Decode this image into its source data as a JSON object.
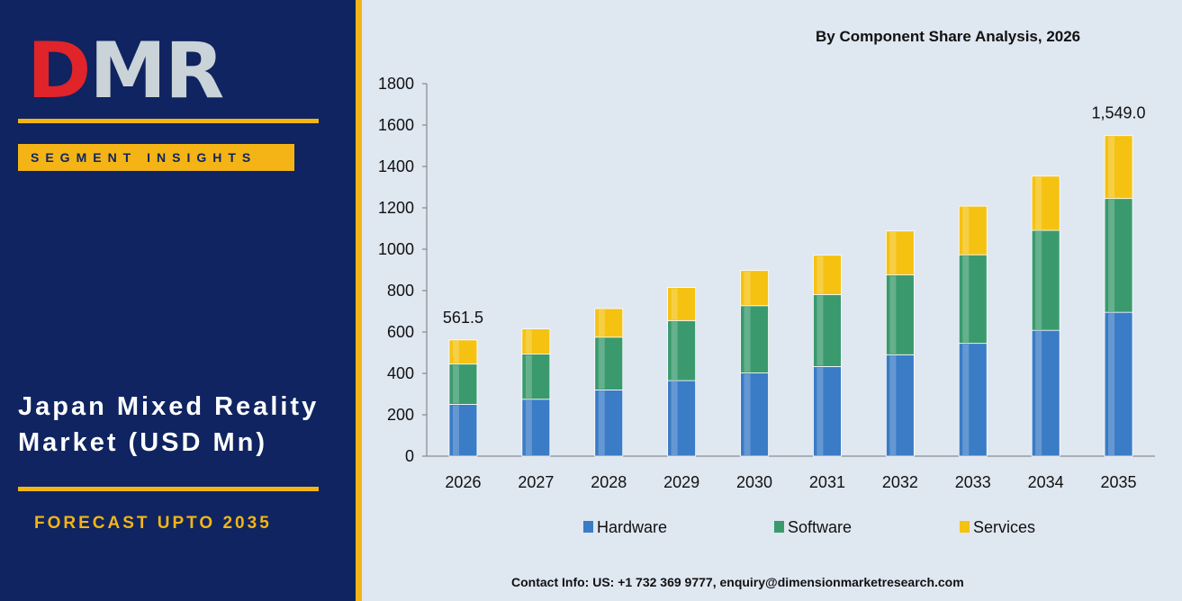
{
  "brand": {
    "logo_letters": [
      "D",
      "M",
      "R"
    ],
    "logo_colors": [
      "#e0242a",
      "#c9d3d8",
      "#c9d3d8"
    ],
    "tag": "SEGMENT INSIGHTS",
    "title": "Japan Mixed Reality Market (USD Mn)",
    "forecast": "FORECAST UPTO 2035"
  },
  "colors": {
    "panel": "#0f2460",
    "accent": "#f4b416",
    "chart_bg": "#dfe7f1"
  },
  "contact": "Contact Info: US: +1 732 369 9777, enquiry@dimensionmarketresearch.com",
  "chart_data": {
    "type": "bar",
    "stacked": true,
    "title": "By Component Share Analysis, 2026",
    "xlabel": "",
    "ylabel": "",
    "categories": [
      "2026",
      "2027",
      "2028",
      "2029",
      "2030",
      "2031",
      "2032",
      "2033",
      "2034",
      "2035"
    ],
    "ylim": [
      0,
      1800
    ],
    "yticks": [
      0,
      200,
      400,
      600,
      800,
      1000,
      1200,
      1400,
      1600,
      1800
    ],
    "grid": false,
    "legend_position": "bottom",
    "series": [
      {
        "name": "Hardware",
        "color": "#3a7cc6",
        "values": [
          250,
          275,
          320,
          365,
          402,
          433,
          490,
          545,
          608,
          695
        ]
      },
      {
        "name": "Software",
        "color": "#3a9a6e",
        "values": [
          195,
          218,
          255,
          290,
          325,
          348,
          386,
          428,
          483,
          550
        ]
      },
      {
        "name": "Services",
        "color": "#f5c211",
        "values": [
          116.5,
          122,
          138,
          160,
          170,
          190,
          212,
          235,
          262,
          304
        ]
      }
    ],
    "total_labels": [
      {
        "category": "2026",
        "text": "561.5"
      },
      {
        "category": "2035",
        "text": "1,549.0"
      }
    ]
  }
}
